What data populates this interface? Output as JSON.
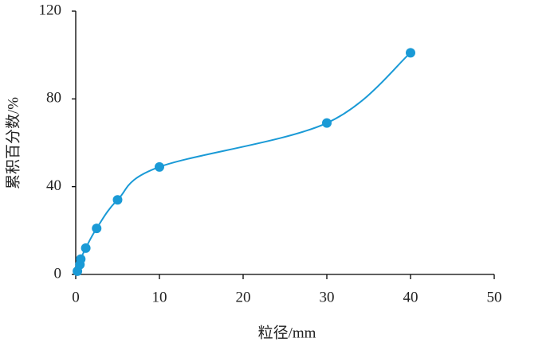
{
  "chart_data": {
    "type": "scatter",
    "smooth": true,
    "color": "#1a9ad6",
    "x_label": "粒径/mm",
    "y_label": "累积百分数/%",
    "x": [
      0.2,
      0.5,
      0.6,
      1.2,
      2.5,
      5,
      10,
      30,
      40
    ],
    "values": [
      1.5,
      4.5,
      7,
      12,
      21,
      34,
      49,
      69,
      101
    ],
    "xlim": [
      0,
      50
    ],
    "xticks": [
      0,
      10,
      20,
      30,
      40,
      50
    ],
    "ylim": [
      0,
      120
    ],
    "yticks": [
      0,
      40,
      80,
      120
    ],
    "grid": false
  }
}
